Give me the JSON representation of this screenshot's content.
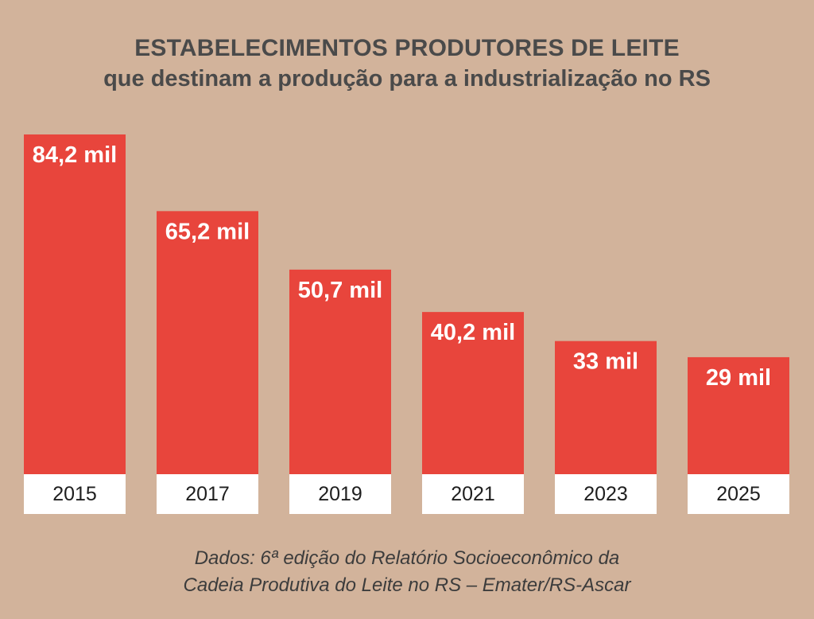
{
  "title_line1": "ESTABELECIMENTOS PRODUTORES DE LEITE",
  "title_line2": "que destinam a produção para a industrialização no RS",
  "source_line1": "Dados: 6ª edição do Relatório Socioeconômico da",
  "source_line2": "Cadeia Produtiva do Leite no RS – Emater/RS-Ascar",
  "colors": {
    "background": "#d2b39b",
    "bar": "#e8453c",
    "tick_box": "#ffffff",
    "title": "#4a4a4a"
  },
  "chart_data": {
    "type": "bar",
    "categories": [
      "2015",
      "2017",
      "2019",
      "2021",
      "2023",
      "2025"
    ],
    "values": [
      84.2,
      65.2,
      50.7,
      40.2,
      33,
      29
    ],
    "data_labels": [
      "84,2 mil",
      "65,2 mil",
      "50,7 mil",
      "40,2 mil",
      "33 mil",
      "29 mil"
    ],
    "unit": "mil",
    "ylim": [
      0,
      84.2
    ],
    "grid": false,
    "legend": "none"
  }
}
